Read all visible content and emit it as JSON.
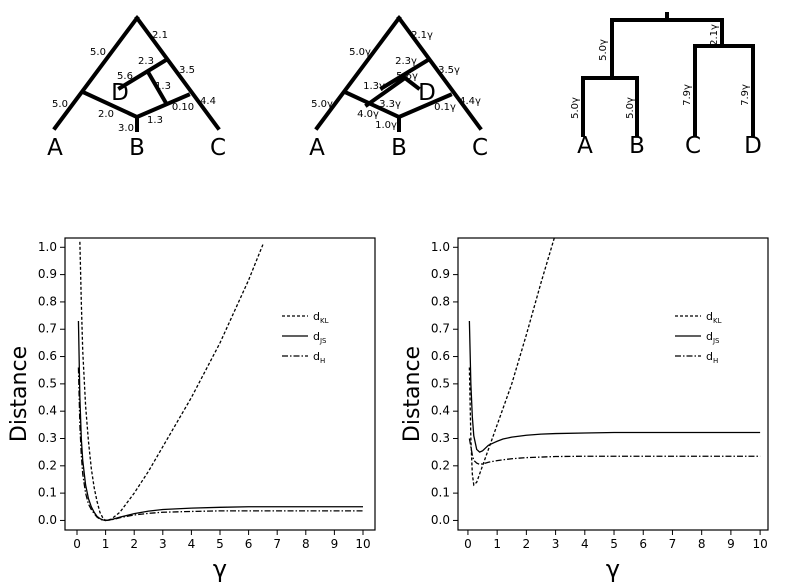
{
  "trees": [
    {
      "edge_labels": [
        "5.0",
        "2.1",
        "2.3",
        "3.5",
        "5.6",
        "1.3",
        "5.0",
        "2.0",
        "0.10",
        "4.4",
        "3.0",
        "1.3"
      ],
      "leaves": [
        "A",
        "B",
        "C",
        "D"
      ]
    },
    {
      "edge_labels": [
        "5.0γ",
        "2.1γ",
        "2.3γ",
        "3.5γ",
        "5.6γ",
        "1.3γ",
        "5.0γ",
        "4.0γ",
        "0.1γ",
        "4.4γ",
        "1.0γ",
        "3.3γ"
      ],
      "leaves": [
        "A",
        "B",
        "C",
        "D"
      ]
    },
    {
      "edge_labels": [
        "5.0γ",
        "2.1γ",
        "5.0γ",
        "5.0γ",
        "7.9γ",
        "7.9γ"
      ],
      "leaves": [
        "A",
        "B",
        "C",
        "D"
      ]
    }
  ],
  "chart_data": [
    {
      "type": "line",
      "xlabel": "γ",
      "ylabel": "Distance",
      "legend": "right",
      "xlim": [
        -0.42,
        10.42
      ],
      "ylim": [
        -0.035,
        1.034
      ],
      "xticks": [
        0,
        1,
        2,
        3,
        4,
        5,
        6,
        7,
        8,
        9,
        10
      ],
      "yticks": [
        {
          "value": 0,
          "label": "0.0"
        },
        {
          "value": 0.1,
          "label": "0.1"
        },
        {
          "value": 0.2,
          "label": "0.2"
        },
        {
          "value": 0.3,
          "label": "0.3"
        },
        {
          "value": 0.4,
          "label": "0.4"
        },
        {
          "value": 0.5,
          "label": "0.5"
        },
        {
          "value": 0.6,
          "label": "0.6"
        },
        {
          "value": 0.7,
          "label": "0.7"
        },
        {
          "value": 0.8,
          "label": "0.8"
        },
        {
          "value": 0.9,
          "label": "0.9"
        },
        {
          "value": 1,
          "label": "1.0"
        }
      ],
      "x": [
        0.05,
        0.1,
        0.15,
        0.2,
        0.3,
        0.4,
        0.5,
        0.6,
        0.7,
        0.8,
        0.9,
        1,
        1.2,
        1.5,
        2,
        2.5,
        3,
        4,
        5,
        6,
        6.5,
        7,
        8,
        9,
        10
      ],
      "series": [
        {
          "name": "dKL",
          "color": "#000",
          "dash": "dashed",
          "values": [
            null,
            1.02,
            0.8,
            0.62,
            0.42,
            0.29,
            0.19,
            0.12,
            0.07,
            0.03,
            0.01,
            0,
            0.005,
            0.03,
            0.1,
            0.18,
            0.27,
            0.45,
            0.65,
            0.88,
            1.01,
            null,
            null,
            null,
            null
          ]
        },
        {
          "name": "dJS",
          "color": "#000",
          "dash": "solid",
          "values": [
            0.73,
            0.45,
            0.3,
            0.22,
            0.13,
            0.08,
            0.05,
            0.03,
            0.015,
            0.007,
            0.002,
            0,
            0.003,
            0.012,
            0.025,
            0.034,
            0.04,
            0.045,
            0.048,
            0.05,
            0.05,
            0.05,
            0.05,
            0.05,
            0.05
          ]
        },
        {
          "name": "dH",
          "color": "#000",
          "dash": "dashdot",
          "values": [
            0.56,
            0.35,
            0.24,
            0.17,
            0.1,
            0.06,
            0.04,
            0.025,
            0.012,
            0.005,
            0.001,
            0,
            0.002,
            0.01,
            0.02,
            0.026,
            0.03,
            0.033,
            0.035,
            0.035,
            0.035,
            0.035,
            0.035,
            0.035,
            0.035
          ]
        }
      ]
    },
    {
      "type": "line",
      "xlabel": "γ",
      "ylabel": "Distance",
      "legend": "right",
      "xlim": [
        -0.34,
        10.27
      ],
      "ylim": [
        -0.035,
        1.034
      ],
      "xticks": [
        0,
        1,
        2,
        3,
        4,
        5,
        6,
        7,
        8,
        9,
        10
      ],
      "yticks": [
        {
          "value": 0,
          "label": "0.0"
        },
        {
          "value": 0.1,
          "label": "0.1"
        },
        {
          "value": 0.2,
          "label": "0.2"
        },
        {
          "value": 0.3,
          "label": "0.3"
        },
        {
          "value": 0.4,
          "label": "0.4"
        },
        {
          "value": 0.5,
          "label": "0.5"
        },
        {
          "value": 0.6,
          "label": "0.6"
        },
        {
          "value": 0.7,
          "label": "0.7"
        },
        {
          "value": 0.8,
          "label": "0.8"
        },
        {
          "value": 0.9,
          "label": "0.9"
        },
        {
          "value": 1,
          "label": "1.0"
        }
      ],
      "x": [
        0.05,
        0.1,
        0.15,
        0.2,
        0.3,
        0.4,
        0.5,
        0.6,
        0.7,
        0.8,
        0.9,
        1,
        1.2,
        1.5,
        2,
        2.5,
        3,
        4,
        5,
        6,
        7,
        8,
        9,
        10
      ],
      "series": [
        {
          "name": "dKL",
          "color": "#000",
          "dash": "dashed",
          "values": [
            0.56,
            0.3,
            0.17,
            0.13,
            0.14,
            0.17,
            0.2,
            0.23,
            0.26,
            0.29,
            0.32,
            0.35,
            0.41,
            0.5,
            0.68,
            0.87,
            1.05,
            null,
            null,
            null,
            null,
            null,
            null,
            null
          ]
        },
        {
          "name": "dJS",
          "color": "#000",
          "dash": "solid",
          "values": [
            0.73,
            0.5,
            0.38,
            0.31,
            0.26,
            0.25,
            0.255,
            0.265,
            0.275,
            0.28,
            0.285,
            0.29,
            0.298,
            0.305,
            0.312,
            0.316,
            0.318,
            0.32,
            0.322,
            0.322,
            0.322,
            0.322,
            0.322,
            0.322
          ]
        },
        {
          "name": "dH",
          "color": "#000",
          "dash": "dashdot",
          "values": [
            0.3,
            0.27,
            0.24,
            0.22,
            0.21,
            0.205,
            0.207,
            0.21,
            0.213,
            0.215,
            0.217,
            0.219,
            0.222,
            0.226,
            0.23,
            0.232,
            0.234,
            0.235,
            0.235,
            0.235,
            0.235,
            0.235,
            0.235,
            0.235
          ]
        }
      ]
    }
  ]
}
